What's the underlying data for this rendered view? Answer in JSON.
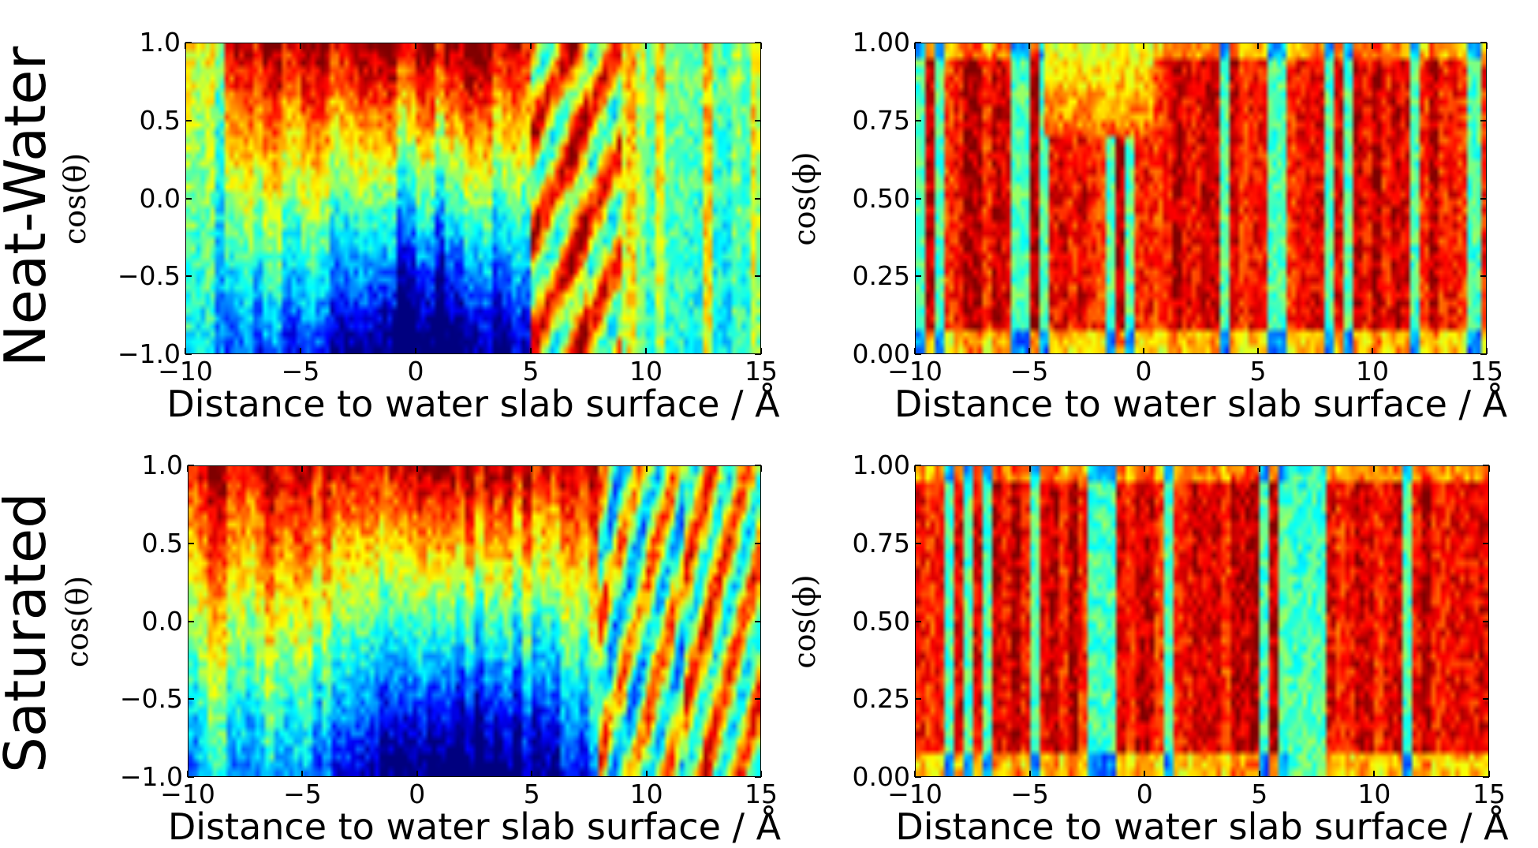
{
  "row_labels": [
    "Neat-Water",
    "Saturated"
  ],
  "colormap": "jet",
  "chart_data": [
    {
      "type": "heatmap",
      "row": "Neat-Water",
      "xlabel": "Distance to water slab surface / Å",
      "ylabel": "cos(θ)",
      "xlim": [
        -10,
        15
      ],
      "ylim": [
        -1.0,
        1.0
      ],
      "xticks": [
        "−10",
        "−5",
        "0",
        "5",
        "10",
        "15"
      ],
      "yticks": [
        "1.0",
        "0.5",
        "0.0",
        "−0.5",
        "−1.0"
      ],
      "grid": false
    },
    {
      "type": "heatmap",
      "row": "Neat-Water",
      "xlabel": "Distance to water slab surface / Å",
      "ylabel": "cos(ϕ)",
      "xlim": [
        -10,
        15
      ],
      "ylim": [
        0.0,
        1.0
      ],
      "xticks": [
        "−10",
        "−5",
        "0",
        "5",
        "10",
        "15"
      ],
      "yticks": [
        "1.00",
        "0.75",
        "0.50",
        "0.25",
        "0.00"
      ],
      "grid": false
    },
    {
      "type": "heatmap",
      "row": "Saturated",
      "xlabel": "Distance to water slab surface / Å",
      "ylabel": "cos(θ)",
      "xlim": [
        -10,
        15
      ],
      "ylim": [
        -1.0,
        1.0
      ],
      "xticks": [
        "−10",
        "−5",
        "0",
        "5",
        "10",
        "15"
      ],
      "yticks": [
        "1.0",
        "0.5",
        "0.0",
        "−0.5",
        "−1.0"
      ],
      "grid": false
    },
    {
      "type": "heatmap",
      "row": "Saturated",
      "xlabel": "Distance to water slab surface / Å",
      "ylabel": "cos(ϕ)",
      "xlim": [
        -10,
        15
      ],
      "ylim": [
        0.0,
        1.0
      ],
      "xticks": [
        "−10",
        "−5",
        "0",
        "5",
        "10",
        "15"
      ],
      "yticks": [
        "1.00",
        "0.75",
        "0.50",
        "0.25",
        "0.00"
      ],
      "grid": false
    }
  ]
}
